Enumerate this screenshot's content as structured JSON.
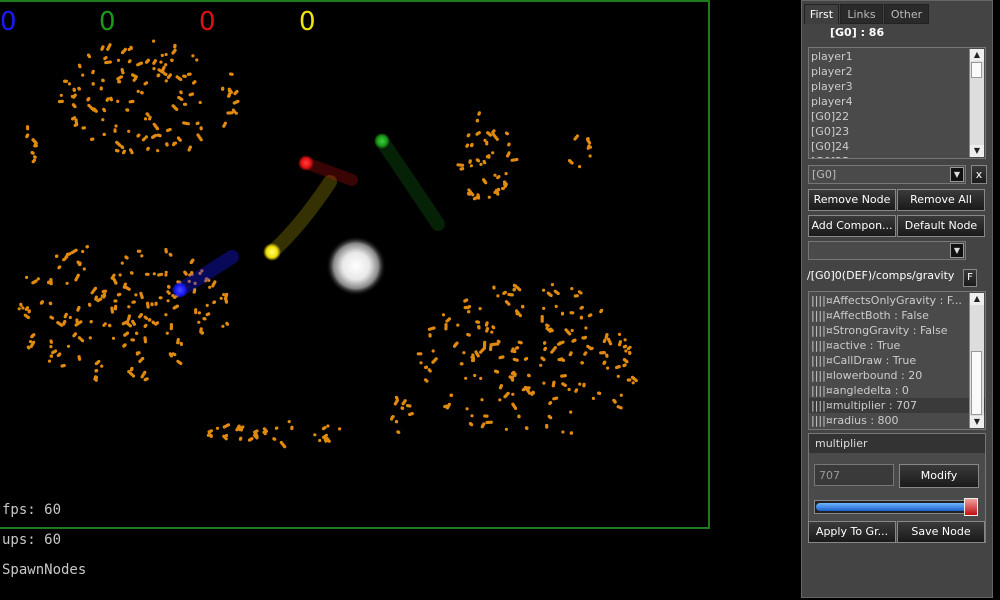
{
  "scores": [
    {
      "value": "0",
      "color": "#1a1aff"
    },
    {
      "value": "0",
      "color": "#1a9a1a"
    },
    {
      "value": "0",
      "color": "#e01010"
    },
    {
      "value": "0",
      "color": "#f2e10a"
    }
  ],
  "stats": {
    "fps": "fps: 60",
    "ups": "ups: 60",
    "mode": "SpawnNodes"
  },
  "colors": {
    "arena_border": "#1f7a1f",
    "node_orange": "#e08a10",
    "blue": "#1a1aff",
    "green": "#1a9a1a",
    "red": "#e01010",
    "yellow": "#f2e10a"
  },
  "panel": {
    "tabs": [
      "First",
      "Links",
      "Other"
    ],
    "active_tab": "First",
    "group_title": "[G0] : 86",
    "node_list": [
      "player1",
      "player2",
      "player3",
      "player4",
      "[G0]22",
      "[G0]23",
      "[G0]24",
      "[G0]25"
    ],
    "group_select": "[G0]",
    "clear_label": "x",
    "buttons": {
      "remove_node": "Remove Node",
      "remove_all": "Remove All",
      "add_component": "Add Compon...",
      "default_node": "Default Node",
      "apply": "Apply To Gr...",
      "save_node": "Save Node",
      "modify": "Modify"
    },
    "component_select": "",
    "path": "/[G0]0(DEF)/comps/gravity",
    "path_button": "F",
    "properties": [
      "||||¤AffectsOnlyGravity : F...",
      "||||¤AffectBoth : False",
      "||||¤StrongGravity : False",
      "||||¤active : True",
      "||||¤CallDraw : True",
      "||||¤lowerbound : 20",
      "||||¤angledelta : 0",
      "||||¤multiplier : 707",
      "||||¤radius : 800"
    ],
    "selected_property": "multiplier",
    "selected_value": "707",
    "slider_fraction": 0.96
  }
}
